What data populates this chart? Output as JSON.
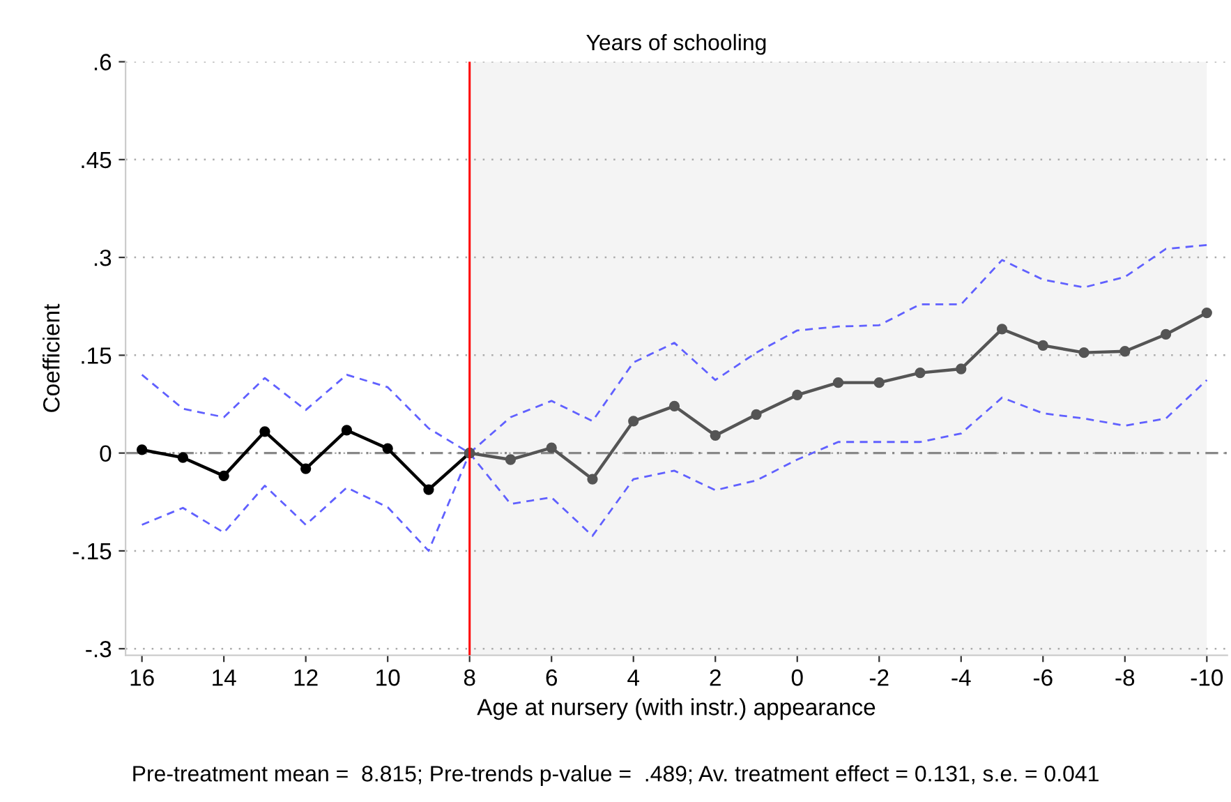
{
  "chart_data": {
    "type": "line",
    "title": "Years of schooling",
    "xlabel": "Age at nursery (with instr.) appearance",
    "ylabel": "Coefficient",
    "annotations": [
      "Pre-treatment mean =  8.815; Pre-trends p-value =  .489; Av. treatment effect = 0.131, s.e. = 0.041"
    ],
    "series": [
      {
        "color": "#6060ff",
        "line_style": "dashed",
        "marker": "none",
        "x": [
          16,
          15,
          14,
          13,
          12,
          11,
          10,
          9,
          8
        ],
        "values": [
          0.12,
          0.068,
          0.055,
          0.115,
          0.066,
          0.12,
          0.101,
          0.038,
          0
        ]
      },
      {
        "color": "#6060ff",
        "line_style": "dashed",
        "marker": "none",
        "x": [
          16,
          15,
          14,
          13,
          12,
          11,
          10,
          9,
          8
        ],
        "values": [
          -0.11,
          -0.084,
          -0.122,
          -0.05,
          -0.11,
          -0.053,
          -0.083,
          -0.15,
          0
        ]
      },
      {
        "color": "#6060ff",
        "line_style": "dashed",
        "marker": "none",
        "x": [
          8,
          7,
          6,
          5,
          4,
          3,
          2,
          1,
          0,
          -1,
          -2,
          -3,
          -4,
          -5,
          -6,
          -7,
          -8,
          -9,
          -10
        ],
        "values": [
          0,
          0.055,
          0.08,
          0.049,
          0.139,
          0.169,
          0.112,
          0.154,
          0.188,
          0.194,
          0.196,
          0.228,
          0.228,
          0.296,
          0.266,
          0.254,
          0.27,
          0.313,
          0.319
        ]
      },
      {
        "color": "#6060ff",
        "line_style": "dashed",
        "marker": "none",
        "x": [
          8,
          7,
          6,
          5,
          4,
          3,
          2,
          1,
          0,
          -1,
          -2,
          -3,
          -4,
          -5,
          -6,
          -7,
          -8,
          -9,
          -10
        ],
        "values": [
          0,
          -0.078,
          -0.068,
          -0.127,
          -0.04,
          -0.027,
          -0.057,
          -0.042,
          -0.01,
          0.017,
          0.017,
          0.017,
          0.03,
          0.085,
          0.061,
          0.053,
          0.042,
          0.053,
          0.112
        ]
      },
      {
        "color": "#000000",
        "line_style": "solid",
        "marker": "circle",
        "x": [
          16,
          15,
          14,
          13,
          12,
          11,
          10,
          9,
          8
        ],
        "values": [
          0.005,
          -0.007,
          -0.035,
          0.033,
          -0.024,
          0.035,
          0.007,
          -0.056,
          0
        ]
      },
      {
        "color": "#555555",
        "line_style": "solid",
        "marker": "circle",
        "x": [
          8,
          7,
          6,
          5,
          4,
          3,
          2,
          1,
          0,
          -1,
          -2,
          -3,
          -4,
          -5,
          -6,
          -7,
          -8,
          -9,
          -10
        ],
        "values": [
          0,
          -0.01,
          0.008,
          -0.04,
          0.049,
          0.072,
          0.027,
          0.059,
          0.089,
          0.108,
          0.108,
          0.123,
          0.129,
          0.19,
          0.165,
          0.154,
          0.156,
          0.182,
          0.215
        ]
      }
    ],
    "xlim": [
      16.4,
      -10.5
    ],
    "xticks": [
      16,
      14,
      12,
      10,
      8,
      6,
      4,
      2,
      0,
      -2,
      -4,
      -6,
      -8,
      -10
    ],
    "ylim": [
      -0.31,
      0.6
    ],
    "yticks": [
      {
        "value": 0.6,
        "label": ".6"
      },
      {
        "value": 0.45,
        "label": ".45"
      },
      {
        "value": 0.3,
        "label": ".3"
      },
      {
        "value": 0.15,
        "label": ".15"
      },
      0,
      {
        "value": -0.15,
        "label": "-.15"
      },
      {
        "value": -0.3,
        "label": "-.3"
      }
    ],
    "ref_lines": [
      {
        "axis": "x",
        "value": 8,
        "color": "#ff0000",
        "line_style": "solid"
      },
      {
        "axis": "y",
        "value": 0,
        "color": "#888888",
        "line_style": "dashed"
      }
    ],
    "bands": [
      {
        "axis": "x",
        "from": 8,
        "to": -10,
        "color": "#f4f4f4"
      }
    ],
    "grid": "y"
  }
}
